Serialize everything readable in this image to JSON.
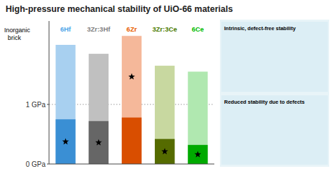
{
  "chart_data": {
    "type": "bar",
    "title": "High-pressure mechanical stability of UiO-66 materials",
    "categories": [
      "6Hf",
      "3Zr:3Hf",
      "6Zr",
      "3Zr:3Ce",
      "6Ce"
    ],
    "category_colors": [
      "#4da6e8",
      "#808080",
      "#e85c00",
      "#4a7a00",
      "#00bb00"
    ],
    "series": [
      {
        "values": [
          2.0,
          1.85,
          2.15,
          1.65,
          1.55
        ],
        "colors": [
          "#a8d0f0",
          "#c0c0c0",
          "#f5b89a",
          "#c8d8a0",
          "#b0e8b0"
        ],
        "marker": "star",
        "starred": [
          false,
          false,
          true,
          false,
          false
        ]
      },
      {
        "values": [
          0.75,
          0.72,
          0.78,
          0.42,
          0.32
        ],
        "colors": [
          "#3a8fd4",
          "#666666",
          "#d94e00",
          "#556b00",
          "#00aa00"
        ],
        "marker": "star",
        "starred": [
          true,
          true,
          false,
          true,
          true
        ]
      }
    ],
    "ylim": [
      0,
      2.4
    ],
    "yticks": [
      {
        "value": 0,
        "label": "0 GPa"
      },
      {
        "value": 1,
        "label": "1 GPa"
      }
    ],
    "hlines": [
      1
    ],
    "grid": false,
    "annotations": [
      "Inorganic\n  brick",
      "Intrinsic, defect-free stability",
      "Reduced stability due to defects"
    ]
  }
}
